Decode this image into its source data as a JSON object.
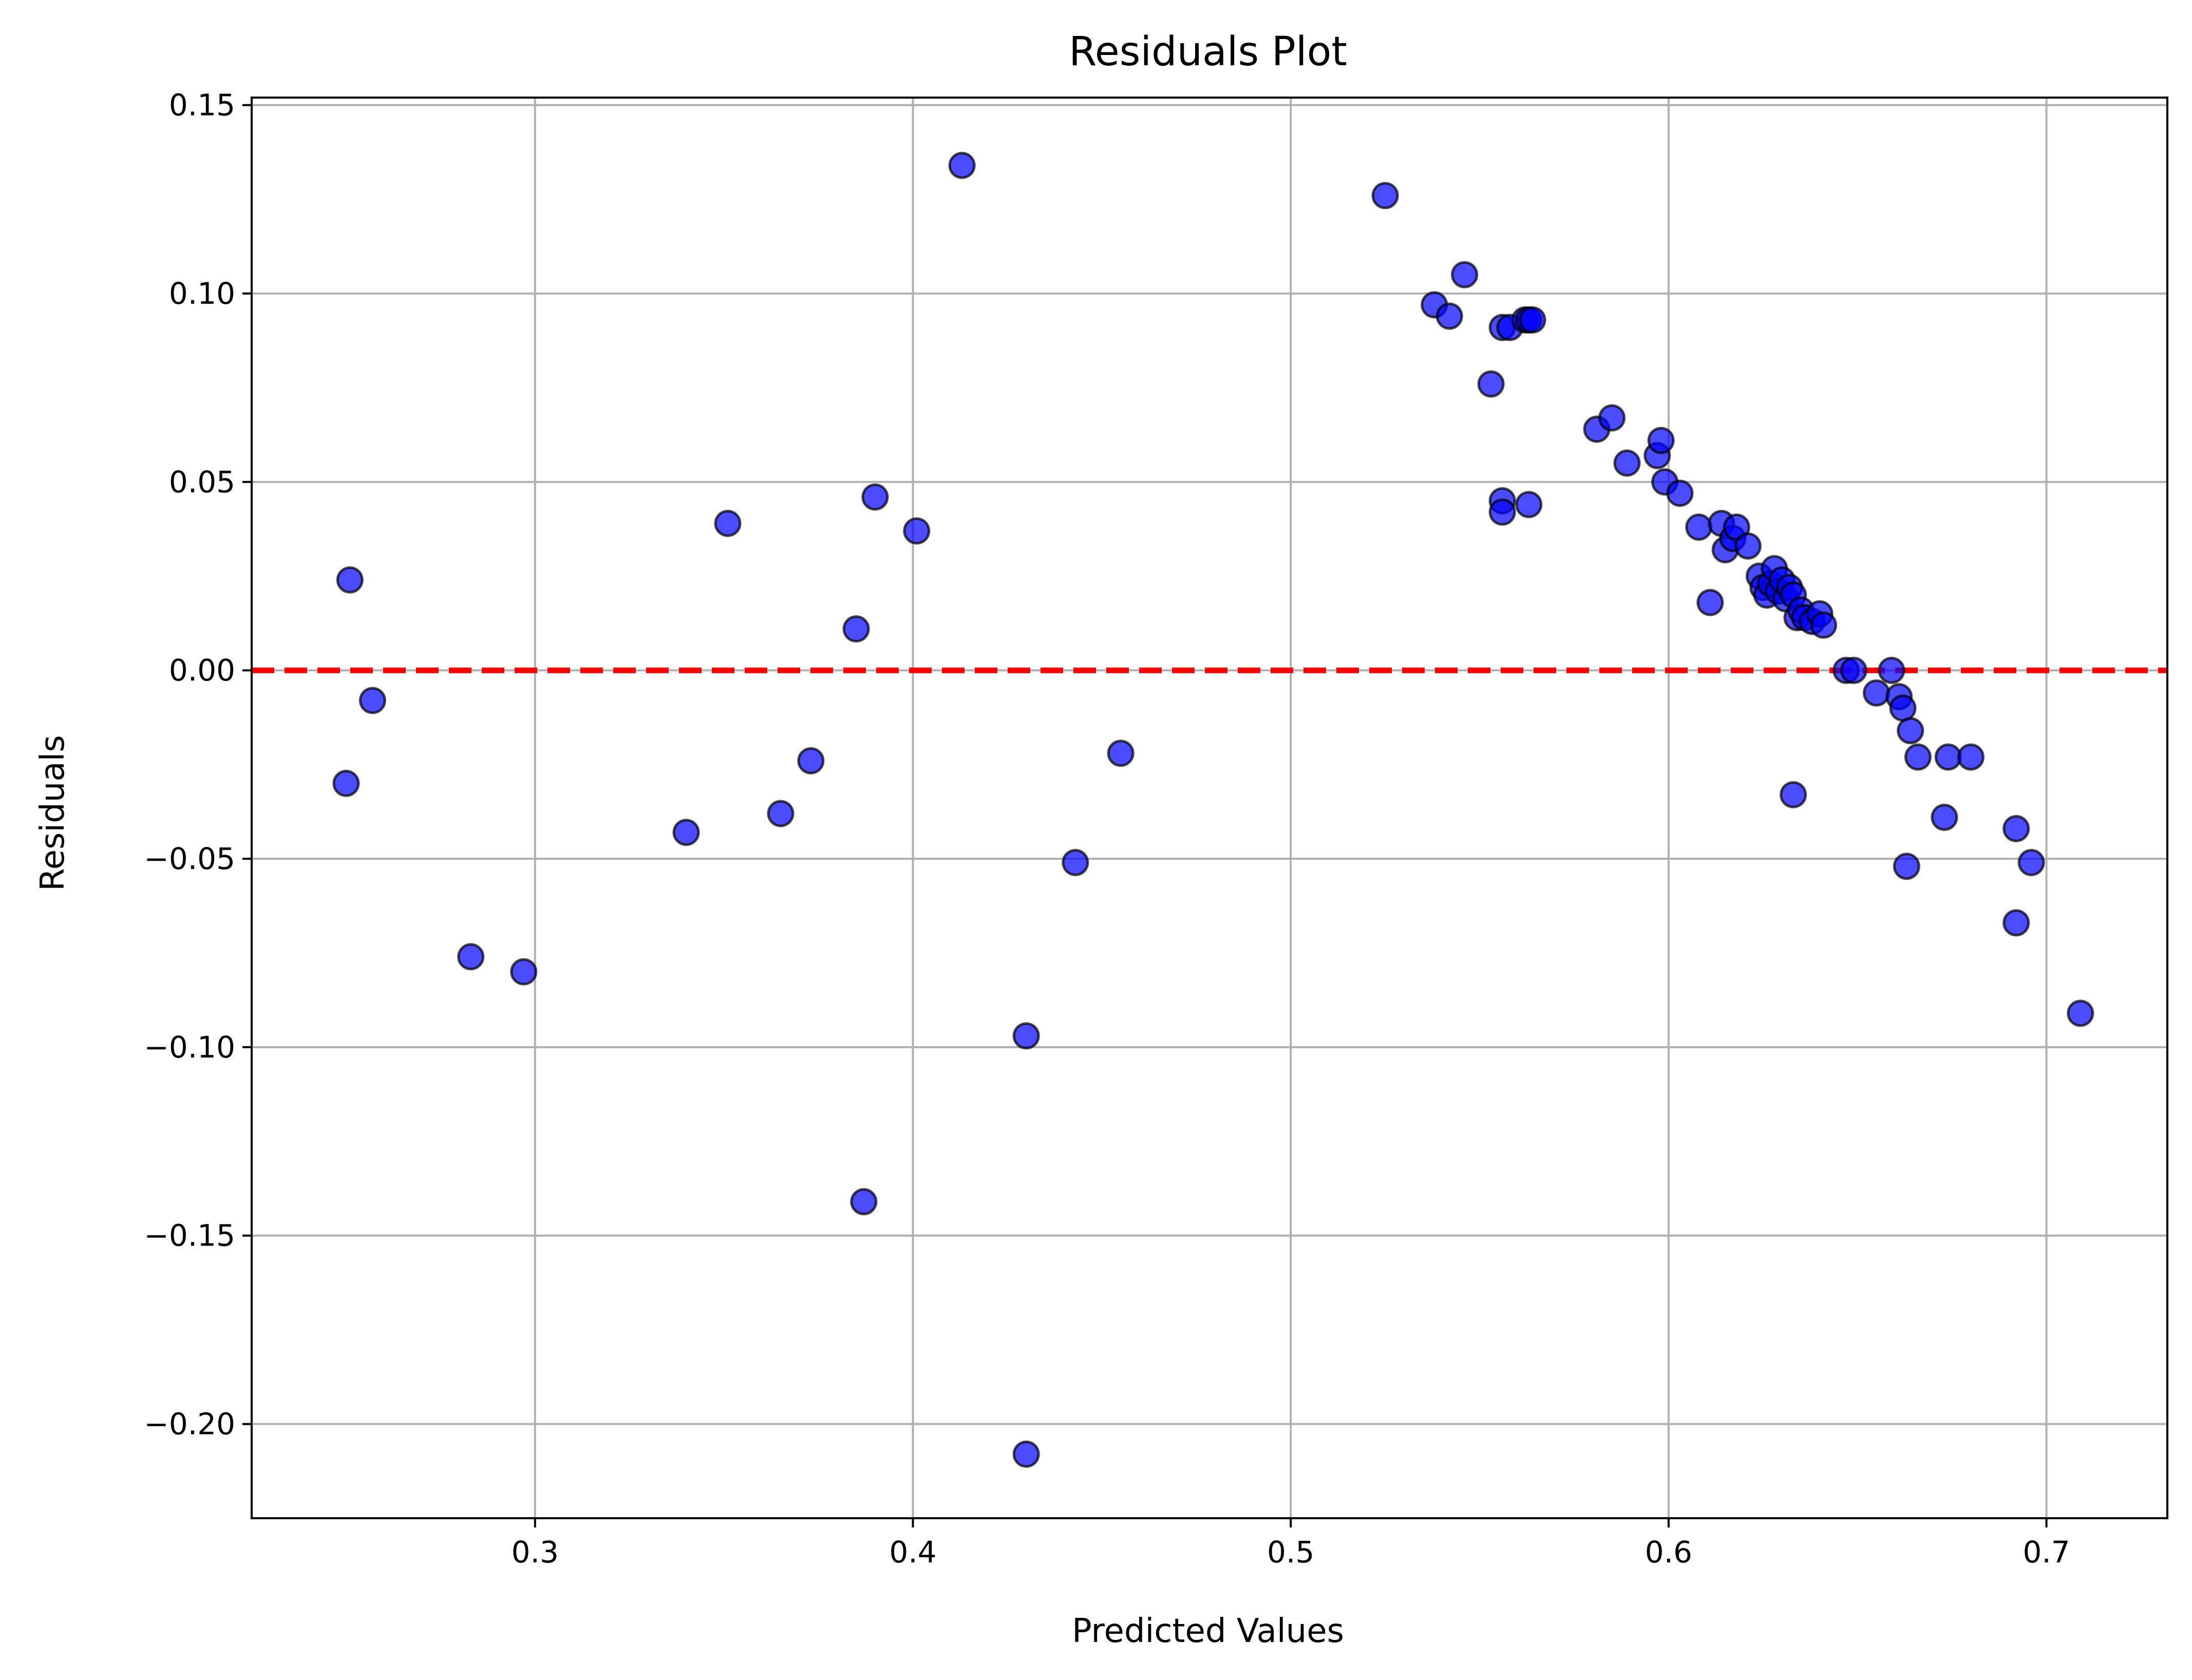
{
  "chart_data": {
    "type": "scatter",
    "title": "Residuals Plot",
    "xlabel": "Predicted Values",
    "ylabel": "Residuals",
    "xlim": [
      0.225,
      0.732
    ],
    "ylim": [
      -0.225,
      0.152
    ],
    "grid": true,
    "x_ticks": [
      0.3,
      0.4,
      0.5,
      0.6,
      0.7
    ],
    "x_tick_labels": [
      "0.3",
      "0.4",
      "0.5",
      "0.6",
      "0.7"
    ],
    "y_ticks": [
      0.15,
      0.1,
      0.05,
      0.0,
      -0.05,
      -0.1,
      -0.15,
      -0.2
    ],
    "y_tick_labels": [
      "0.15",
      "0.10",
      "0.05",
      "0.00",
      "−0.05",
      "−0.10",
      "−0.15",
      "−0.20"
    ],
    "reference_line": {
      "y": 0,
      "color": "#ff0000",
      "style": "dashed"
    },
    "marker": {
      "fill": "#0000ff",
      "edge": "#000000",
      "opacity": 0.7
    },
    "x": [
      0.251,
      0.25,
      0.257,
      0.283,
      0.297,
      0.34,
      0.351,
      0.365,
      0.373,
      0.385,
      0.387,
      0.39,
      0.401,
      0.413,
      0.43,
      0.43,
      0.443,
      0.455,
      0.525,
      0.538,
      0.542,
      0.546,
      0.553,
      0.556,
      0.556,
      0.556,
      0.558,
      0.562,
      0.563,
      0.564,
      0.563,
      0.581,
      0.585,
      0.589,
      0.597,
      0.598,
      0.599,
      0.603,
      0.608,
      0.611,
      0.614,
      0.615,
      0.617,
      0.618,
      0.621,
      0.624,
      0.625,
      0.626,
      0.627,
      0.628,
      0.629,
      0.63,
      0.631,
      0.632,
      0.633,
      0.633,
      0.634,
      0.635,
      0.636,
      0.638,
      0.64,
      0.641,
      0.647,
      0.649,
      0.655,
      0.659,
      0.661,
      0.662,
      0.663,
      0.664,
      0.666,
      0.673,
      0.674,
      0.68,
      0.692,
      0.692,
      0.696,
      0.709
    ],
    "y": [
      0.024,
      -0.03,
      -0.008,
      -0.076,
      -0.08,
      -0.043,
      0.039,
      -0.038,
      -0.024,
      0.011,
      -0.141,
      0.046,
      0.037,
      0.134,
      -0.097,
      -0.208,
      -0.051,
      -0.022,
      0.126,
      0.097,
      0.094,
      0.105,
      0.076,
      0.091,
      0.045,
      0.042,
      0.091,
      0.093,
      0.093,
      0.093,
      0.044,
      0.064,
      0.067,
      0.055,
      0.057,
      0.061,
      0.05,
      0.047,
      0.038,
      0.018,
      0.039,
      0.032,
      0.035,
      0.038,
      0.033,
      0.025,
      0.022,
      0.02,
      0.023,
      0.027,
      0.021,
      0.024,
      0.019,
      0.022,
      0.02,
      -0.033,
      0.014,
      0.016,
      0.014,
      0.013,
      0.015,
      0.012,
      0.0,
      0.0,
      -0.006,
      0.0,
      -0.007,
      -0.01,
      -0.052,
      -0.016,
      -0.023,
      -0.039,
      -0.023,
      -0.023,
      -0.042,
      -0.067,
      -0.051,
      -0.091
    ]
  }
}
